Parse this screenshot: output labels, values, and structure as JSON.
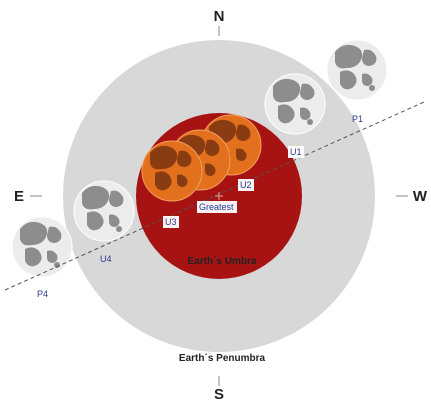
{
  "compass": {
    "north": "N",
    "south": "S",
    "east": "E",
    "west": "W"
  },
  "zones": {
    "umbra": "Earth´s Umbra",
    "penumbra": "Earth´s Penumbra"
  },
  "contacts": {
    "p1": "P1",
    "u1": "U1",
    "u2": "U2",
    "greatest": "Greatest",
    "u3": "U3",
    "u4": "U4",
    "p4": "P4"
  },
  "colors": {
    "penumbra": "#d8d8d8",
    "umbra": "#a71313",
    "moon_light": "#ececec",
    "moon_dark": "#8d8d8d",
    "moon_eclipsed": "#e3701d",
    "moon_eclipsed_dark": "#7a3210",
    "path_line": "#555555",
    "label_text": "#2d3a8c"
  }
}
